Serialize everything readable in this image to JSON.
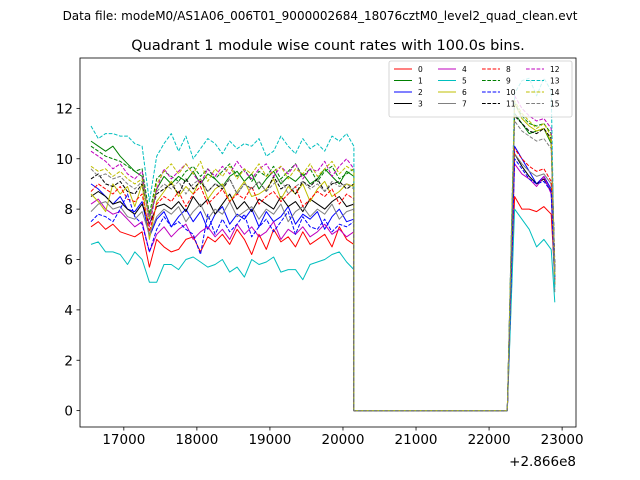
{
  "chart_data": {
    "type": "line",
    "suptitle": "Data file: modeM0/AS1A06_006T01_9000002684_18076cztM0_level2_quad_clean.evt",
    "title": "Quadrant 1 module wise count rates with 100.0s bins.",
    "xlabel": "",
    "ylabel": "",
    "x_offset_label": "+2.866e8",
    "xlim": [
      16400,
      23190
    ],
    "ylim": [
      -0.65,
      14.0
    ],
    "xticks": [
      17000,
      18000,
      19000,
      20000,
      21000,
      22000,
      23000
    ],
    "xtick_labels": [
      "17000",
      "18000",
      "19000",
      "20000",
      "21000",
      "22000",
      "23000"
    ],
    "yticks": [
      0,
      2,
      4,
      6,
      8,
      10,
      12
    ],
    "ytick_labels": [
      "0",
      "2",
      "4",
      "6",
      "8",
      "10",
      "12"
    ],
    "x_segment1": {
      "start": 16550,
      "step": 100,
      "count": 37
    },
    "gap": {
      "start": 20150,
      "end": 22250,
      "value": 0
    },
    "x_segment2": [
      22350,
      22450,
      22550,
      22650,
      22750,
      22850,
      22900
    ],
    "legend": {
      "placement": "upper-right",
      "ncol": 4
    },
    "series": [
      {
        "name": "0",
        "color": "#ff0000",
        "dash": "solid",
        "values1": [
          7.3,
          7.5,
          7.2,
          7.4,
          7.1,
          7.0,
          6.9,
          7.1,
          5.7,
          6.8,
          6.5,
          6.3,
          6.4,
          6.8,
          6.9,
          6.3,
          6.9,
          6.7,
          7.0,
          6.6,
          7.2,
          6.8,
          6.2,
          7.0,
          6.4,
          7.2,
          6.7,
          6.9,
          6.5,
          7.1,
          6.6,
          6.8,
          7.0,
          6.5,
          7.3,
          6.8,
          6.6
        ],
        "values2": [
          8.5,
          8.0,
          8.0,
          7.9,
          8.1,
          7.8,
          5.2
        ]
      },
      {
        "name": "1",
        "color": "#008000",
        "dash": "solid",
        "values1": [
          10.7,
          10.5,
          10.3,
          10.5,
          10.1,
          9.8,
          9.5,
          9.3,
          7.6,
          8.8,
          9.3,
          9.0,
          9.3,
          9.1,
          9.5,
          9.0,
          9.4,
          9.2,
          8.9,
          9.3,
          9.5,
          9.1,
          9.4,
          8.8,
          9.2,
          9.5,
          9.0,
          9.3,
          9.1,
          9.4,
          9.0,
          9.2,
          9.6,
          9.3,
          9.0,
          9.5,
          9.3
        ],
        "values2": [
          11.8,
          11.4,
          11.0,
          11.1,
          11.2,
          10.6,
          5.5
        ]
      },
      {
        "name": "2",
        "color": "#0000ff",
        "dash": "solid",
        "values1": [
          9.0,
          8.8,
          8.5,
          8.2,
          8.5,
          8.0,
          7.9,
          8.3,
          6.9,
          7.6,
          7.9,
          7.3,
          7.7,
          8.0,
          7.5,
          7.9,
          7.2,
          7.8,
          8.1,
          7.4,
          7.8,
          7.6,
          8.0,
          7.3,
          7.9,
          7.5,
          7.7,
          8.1,
          7.4,
          7.8,
          7.6,
          7.9,
          7.2,
          7.7,
          8.0,
          7.5,
          7.6
        ],
        "values2": [
          10.5,
          10.0,
          9.5,
          9.0,
          9.3,
          8.8,
          5.6
        ]
      },
      {
        "name": "3",
        "color": "#000000",
        "dash": "solid",
        "values1": [
          8.5,
          8.7,
          8.5,
          8.2,
          8.3,
          8.0,
          7.8,
          8.2,
          7.4,
          8.1,
          8.2,
          8.0,
          8.3,
          7.9,
          8.5,
          8.1,
          8.4,
          7.8,
          8.2,
          8.6,
          8.0,
          8.3,
          7.9,
          8.4,
          8.2,
          8.0,
          8.5,
          8.1,
          8.3,
          7.9,
          8.4,
          8.2,
          8.0,
          8.3,
          8.5,
          8.1,
          8.2
        ],
        "values2": [
          10.2,
          9.7,
          9.3,
          9.0,
          9.2,
          8.7,
          5.0
        ]
      },
      {
        "name": "4",
        "color": "#bf00bf",
        "dash": "solid",
        "values1": [
          8.2,
          8.4,
          8.0,
          7.8,
          7.9,
          7.6,
          7.3,
          7.5,
          6.3,
          7.0,
          7.3,
          6.9,
          7.2,
          7.4,
          6.8,
          7.1,
          7.3,
          6.9,
          7.2,
          6.8,
          7.4,
          7.0,
          7.3,
          6.9,
          7.1,
          7.5,
          6.8,
          7.2,
          7.0,
          7.3,
          6.9,
          7.1,
          7.4,
          7.0,
          7.2,
          6.9,
          7.1
        ],
        "values2": [
          9.8,
          9.4,
          9.2,
          8.9,
          9.3,
          8.6,
          5.2
        ]
      },
      {
        "name": "5",
        "color": "#00bfbf",
        "dash": "solid",
        "values1": [
          6.6,
          6.7,
          6.3,
          6.3,
          6.2,
          5.8,
          6.3,
          6.0,
          5.1,
          5.1,
          5.8,
          5.8,
          5.6,
          6.0,
          6.1,
          5.9,
          5.7,
          5.8,
          6.0,
          5.5,
          5.7,
          5.3,
          6.0,
          5.8,
          5.9,
          6.1,
          5.5,
          5.6,
          5.6,
          5.2,
          5.8,
          5.9,
          6.0,
          6.2,
          6.3,
          5.9,
          5.6
        ],
        "values2": [
          8.0,
          7.6,
          7.2,
          6.5,
          6.8,
          6.4,
          4.3
        ]
      },
      {
        "name": "6",
        "color": "#bfbf00",
        "dash": "solid",
        "values1": [
          8.6,
          8.3,
          7.9,
          9.0,
          8.6,
          8.9,
          8.1,
          9.0,
          6.8,
          8.3,
          8.7,
          9.1,
          8.5,
          8.9,
          8.6,
          9.2,
          8.4,
          8.8,
          9.0,
          8.3,
          8.7,
          9.1,
          8.5,
          8.6,
          8.8,
          9.2,
          8.4,
          8.9,
          8.6,
          9.0,
          8.3,
          8.8,
          9.1,
          8.5,
          8.7,
          9.0,
          8.9
        ],
        "values2": [
          12.2,
          11.6,
          11.3,
          11.1,
          11.2,
          10.7,
          5.0
        ]
      },
      {
        "name": "7",
        "color": "#808080",
        "dash": "solid",
        "values1": [
          7.9,
          8.2,
          8.3,
          8.0,
          8.1,
          7.7,
          7.6,
          7.9,
          7.0,
          7.7,
          8.0,
          7.8,
          8.1,
          7.5,
          7.9,
          8.2,
          7.6,
          8.0,
          7.8,
          8.3,
          7.7,
          7.9,
          8.1,
          7.6,
          8.0,
          7.8,
          8.2,
          7.5,
          7.9,
          8.1,
          7.7,
          8.0,
          7.8,
          8.2,
          7.6,
          7.9,
          8.0
        ],
        "values2": [
          10.2,
          9.8,
          9.5,
          9.3,
          9.4,
          9.0,
          4.7
        ]
      },
      {
        "name": "8",
        "color": "#ff0000",
        "dash": "dashed",
        "values1": [
          8.7,
          9.0,
          8.8,
          8.6,
          8.9,
          8.4,
          8.3,
          8.6,
          7.1,
          8.2,
          8.5,
          8.3,
          8.7,
          8.1,
          8.6,
          8.9,
          8.2,
          8.5,
          8.8,
          8.3,
          8.6,
          8.4,
          8.9,
          8.2,
          8.5,
          8.7,
          8.3,
          8.6,
          8.9,
          8.1,
          8.4,
          8.7,
          8.5,
          8.8,
          8.2,
          8.6,
          8.4
        ],
        "values2": [
          10.4,
          10.0,
          9.7,
          9.5,
          9.6,
          9.1,
          5.2
        ]
      },
      {
        "name": "9",
        "color": "#008000",
        "dash": "dashed",
        "values1": [
          10.5,
          10.3,
          10.1,
          10.0,
          9.9,
          9.7,
          9.5,
          9.6,
          7.8,
          9.2,
          9.5,
          9.3,
          9.1,
          9.5,
          9.7,
          9.3,
          9.6,
          9.2,
          9.5,
          9.8,
          9.3,
          9.6,
          9.1,
          9.5,
          9.3,
          9.7,
          9.2,
          9.5,
          9.8,
          9.3,
          9.6,
          9.1,
          9.5,
          9.7,
          9.2,
          9.4,
          9.6
        ],
        "values2": [
          12.2,
          11.7,
          11.4,
          11.3,
          11.4,
          11.0,
          5.7
        ]
      },
      {
        "name": "10",
        "color": "#0000ff",
        "dash": "dashed",
        "values1": [
          7.5,
          7.8,
          7.7,
          7.5,
          8.0,
          8.6,
          7.7,
          7.4,
          6.3,
          7.2,
          7.7,
          7.3,
          7.5,
          7.2,
          7.0,
          6.2,
          7.8,
          7.0,
          7.6,
          7.1,
          7.4,
          7.8,
          6.9,
          7.3,
          7.6,
          7.1,
          7.5,
          7.9,
          7.0,
          7.7,
          7.3,
          7.2,
          7.6,
          7.1,
          7.4,
          7.3,
          7.5
        ],
        "values2": [
          10.0,
          9.6,
          9.2,
          9.0,
          9.1,
          8.7,
          5.3
        ]
      },
      {
        "name": "11",
        "color": "#000000",
        "dash": "dashed",
        "values1": [
          9.2,
          9.4,
          9.0,
          8.9,
          9.1,
          8.7,
          8.6,
          9.0,
          7.7,
          8.6,
          8.8,
          9.0,
          8.6,
          9.2,
          8.8,
          9.1,
          8.7,
          9.0,
          8.8,
          9.2,
          8.6,
          9.0,
          8.8,
          9.1,
          8.7,
          9.3,
          8.8,
          9.0,
          8.6,
          9.1,
          8.9,
          9.2,
          8.7,
          9.0,
          9.1,
          8.8,
          9.0
        ],
        "values2": [
          11.7,
          11.4,
          11.1,
          11.0,
          11.2,
          10.8,
          5.8
        ]
      },
      {
        "name": "12",
        "color": "#bf00bf",
        "dash": "dashed",
        "values1": [
          10.3,
          10.1,
          9.9,
          9.6,
          9.8,
          9.4,
          9.2,
          9.5,
          7.3,
          8.8,
          9.6,
          9.2,
          9.5,
          9.8,
          9.4,
          9.0,
          9.6,
          9.3,
          9.7,
          9.4,
          9.9,
          9.5,
          9.2,
          9.6,
          9.8,
          9.3,
          9.7,
          9.4,
          9.8,
          9.2,
          9.6,
          9.5,
          9.9,
          9.3,
          9.7,
          10.0,
          9.6
        ],
        "values2": [
          12.5,
          12.0,
          11.7,
          11.5,
          11.6,
          11.2,
          5.6
        ]
      },
      {
        "name": "13",
        "color": "#00bfbf",
        "dash": "dashed",
        "values1": [
          11.3,
          10.8,
          11.0,
          11.0,
          10.9,
          10.9,
          10.6,
          10.5,
          8.3,
          10.1,
          10.6,
          11.0,
          10.3,
          10.9,
          10.0,
          10.4,
          10.8,
          10.6,
          10.2,
          10.7,
          10.4,
          10.6,
          10.5,
          10.8,
          10.1,
          10.3,
          10.9,
          10.5,
          10.2,
          10.8,
          10.4,
          10.6,
          10.3,
          10.9,
          10.7,
          11.0,
          10.5
        ],
        "values2": [
          12.6,
          13.1,
          13.2,
          12.5,
          13.2,
          12.7,
          4.8
        ]
      },
      {
        "name": "14",
        "color": "#bfbf00",
        "dash": "dashed",
        "values1": [
          9.7,
          9.5,
          9.6,
          9.3,
          9.5,
          9.2,
          9.0,
          9.2,
          7.6,
          9.0,
          9.5,
          9.8,
          9.4,
          9.8,
          9.4,
          9.9,
          9.1,
          9.6,
          9.3,
          9.7,
          9.2,
          9.6,
          9.4,
          9.8,
          9.3,
          9.5,
          9.7,
          9.2,
          9.6,
          9.4,
          9.8,
          9.3,
          9.6,
          9.9,
          9.4,
          9.7,
          9.5
        ],
        "values2": [
          12.3,
          11.8,
          11.5,
          11.2,
          11.4,
          10.9,
          5.4
        ]
      },
      {
        "name": "15",
        "color": "#808080",
        "dash": "dashed",
        "values1": [
          9.6,
          9.3,
          9.4,
          9.2,
          9.3,
          9.0,
          8.8,
          9.1,
          7.7,
          8.7,
          9.0,
          8.8,
          9.1,
          8.6,
          9.0,
          9.2,
          8.7,
          9.0,
          8.9,
          9.2,
          8.6,
          9.0,
          8.8,
          9.1,
          8.7,
          9.0,
          9.2,
          8.6,
          8.9,
          9.1,
          8.8,
          9.0,
          8.7,
          9.1,
          8.9,
          9.0,
          8.8
        ],
        "values2": [
          11.5,
          11.1,
          10.9,
          10.7,
          10.8,
          10.4,
          5.5
        ]
      }
    ]
  }
}
